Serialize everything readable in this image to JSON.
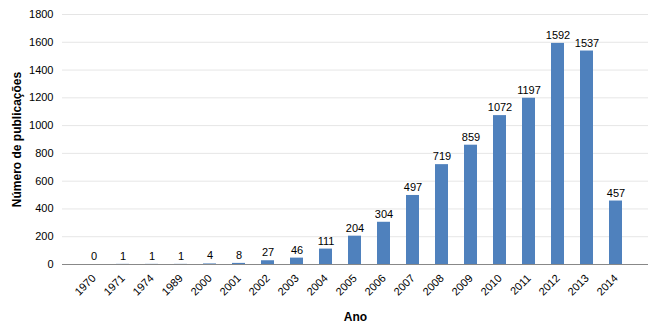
{
  "chart_data": {
    "type": "bar",
    "x_label": "Ano",
    "y_label": "Número de publicações",
    "categories": [
      "1970",
      "1971",
      "1974",
      "1989",
      "2000",
      "2001",
      "2002",
      "2003",
      "2004",
      "2005",
      "2006",
      "2007",
      "2008",
      "2009",
      "2010",
      "2011",
      "2012",
      "2013",
      "2014"
    ],
    "values": [
      0,
      1,
      1,
      1,
      4,
      8,
      27,
      46,
      111,
      204,
      304,
      497,
      719,
      859,
      1072,
      1197,
      1592,
      1537,
      457
    ],
    "color": "#4f81bd",
    "ylim": [
      0,
      1800
    ],
    "yticks": [
      0,
      200,
      400,
      600,
      800,
      1000,
      1200,
      1400,
      1600,
      1800
    ],
    "grid": true,
    "data_labels": true
  }
}
